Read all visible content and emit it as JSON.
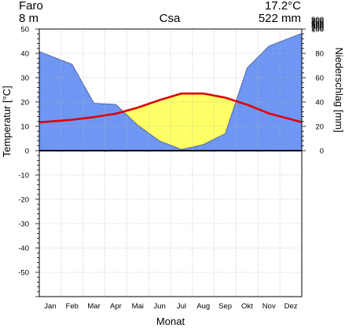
{
  "header": {
    "station": "Faro",
    "elevation": "8 m",
    "climate_class": "Csa",
    "mean_temperature": "17.2°C",
    "annual_precipitation": "522 mm"
  },
  "chart_data": {
    "type": "line",
    "title": "",
    "xlabel": "Monat",
    "ylabel_left": "Temperatur [°C]",
    "ylabel_right": "Niederschlag [mm]",
    "categories": [
      "Jan",
      "Feb",
      "Mar",
      "Apr",
      "Mai",
      "Jun",
      "Jul",
      "Aug",
      "Sep",
      "Okt",
      "Nov",
      "Dez"
    ],
    "series": [
      {
        "values": [
          12,
          12.7,
          13.8,
          15.2,
          17.7,
          20.8,
          23.5,
          23.5,
          21.8,
          18.9,
          15.3,
          12.9
        ],
        "color": "#dd0000"
      },
      {
        "values": [
          78,
          71,
          39,
          38,
          21,
          8,
          1,
          5,
          14,
          68,
          86,
          93
        ],
        "color": "#6f96f2"
      }
    ],
    "temp_ylim": [
      -60,
      50
    ],
    "temp_ticks": [
      50,
      40,
      30,
      20,
      10,
      0,
      -10,
      -20,
      -30,
      -40,
      -50
    ],
    "precip_ylim": [
      0,
      100
    ],
    "precip_ticks": [
      900,
      800,
      700,
      600,
      500,
      400,
      300,
      200,
      100,
      80,
      60,
      40,
      20,
      0
    ],
    "grid": true,
    "colors": {
      "humid": "#6f96f2",
      "arid": "#ffff66",
      "temperature": "#dd0000"
    }
  }
}
